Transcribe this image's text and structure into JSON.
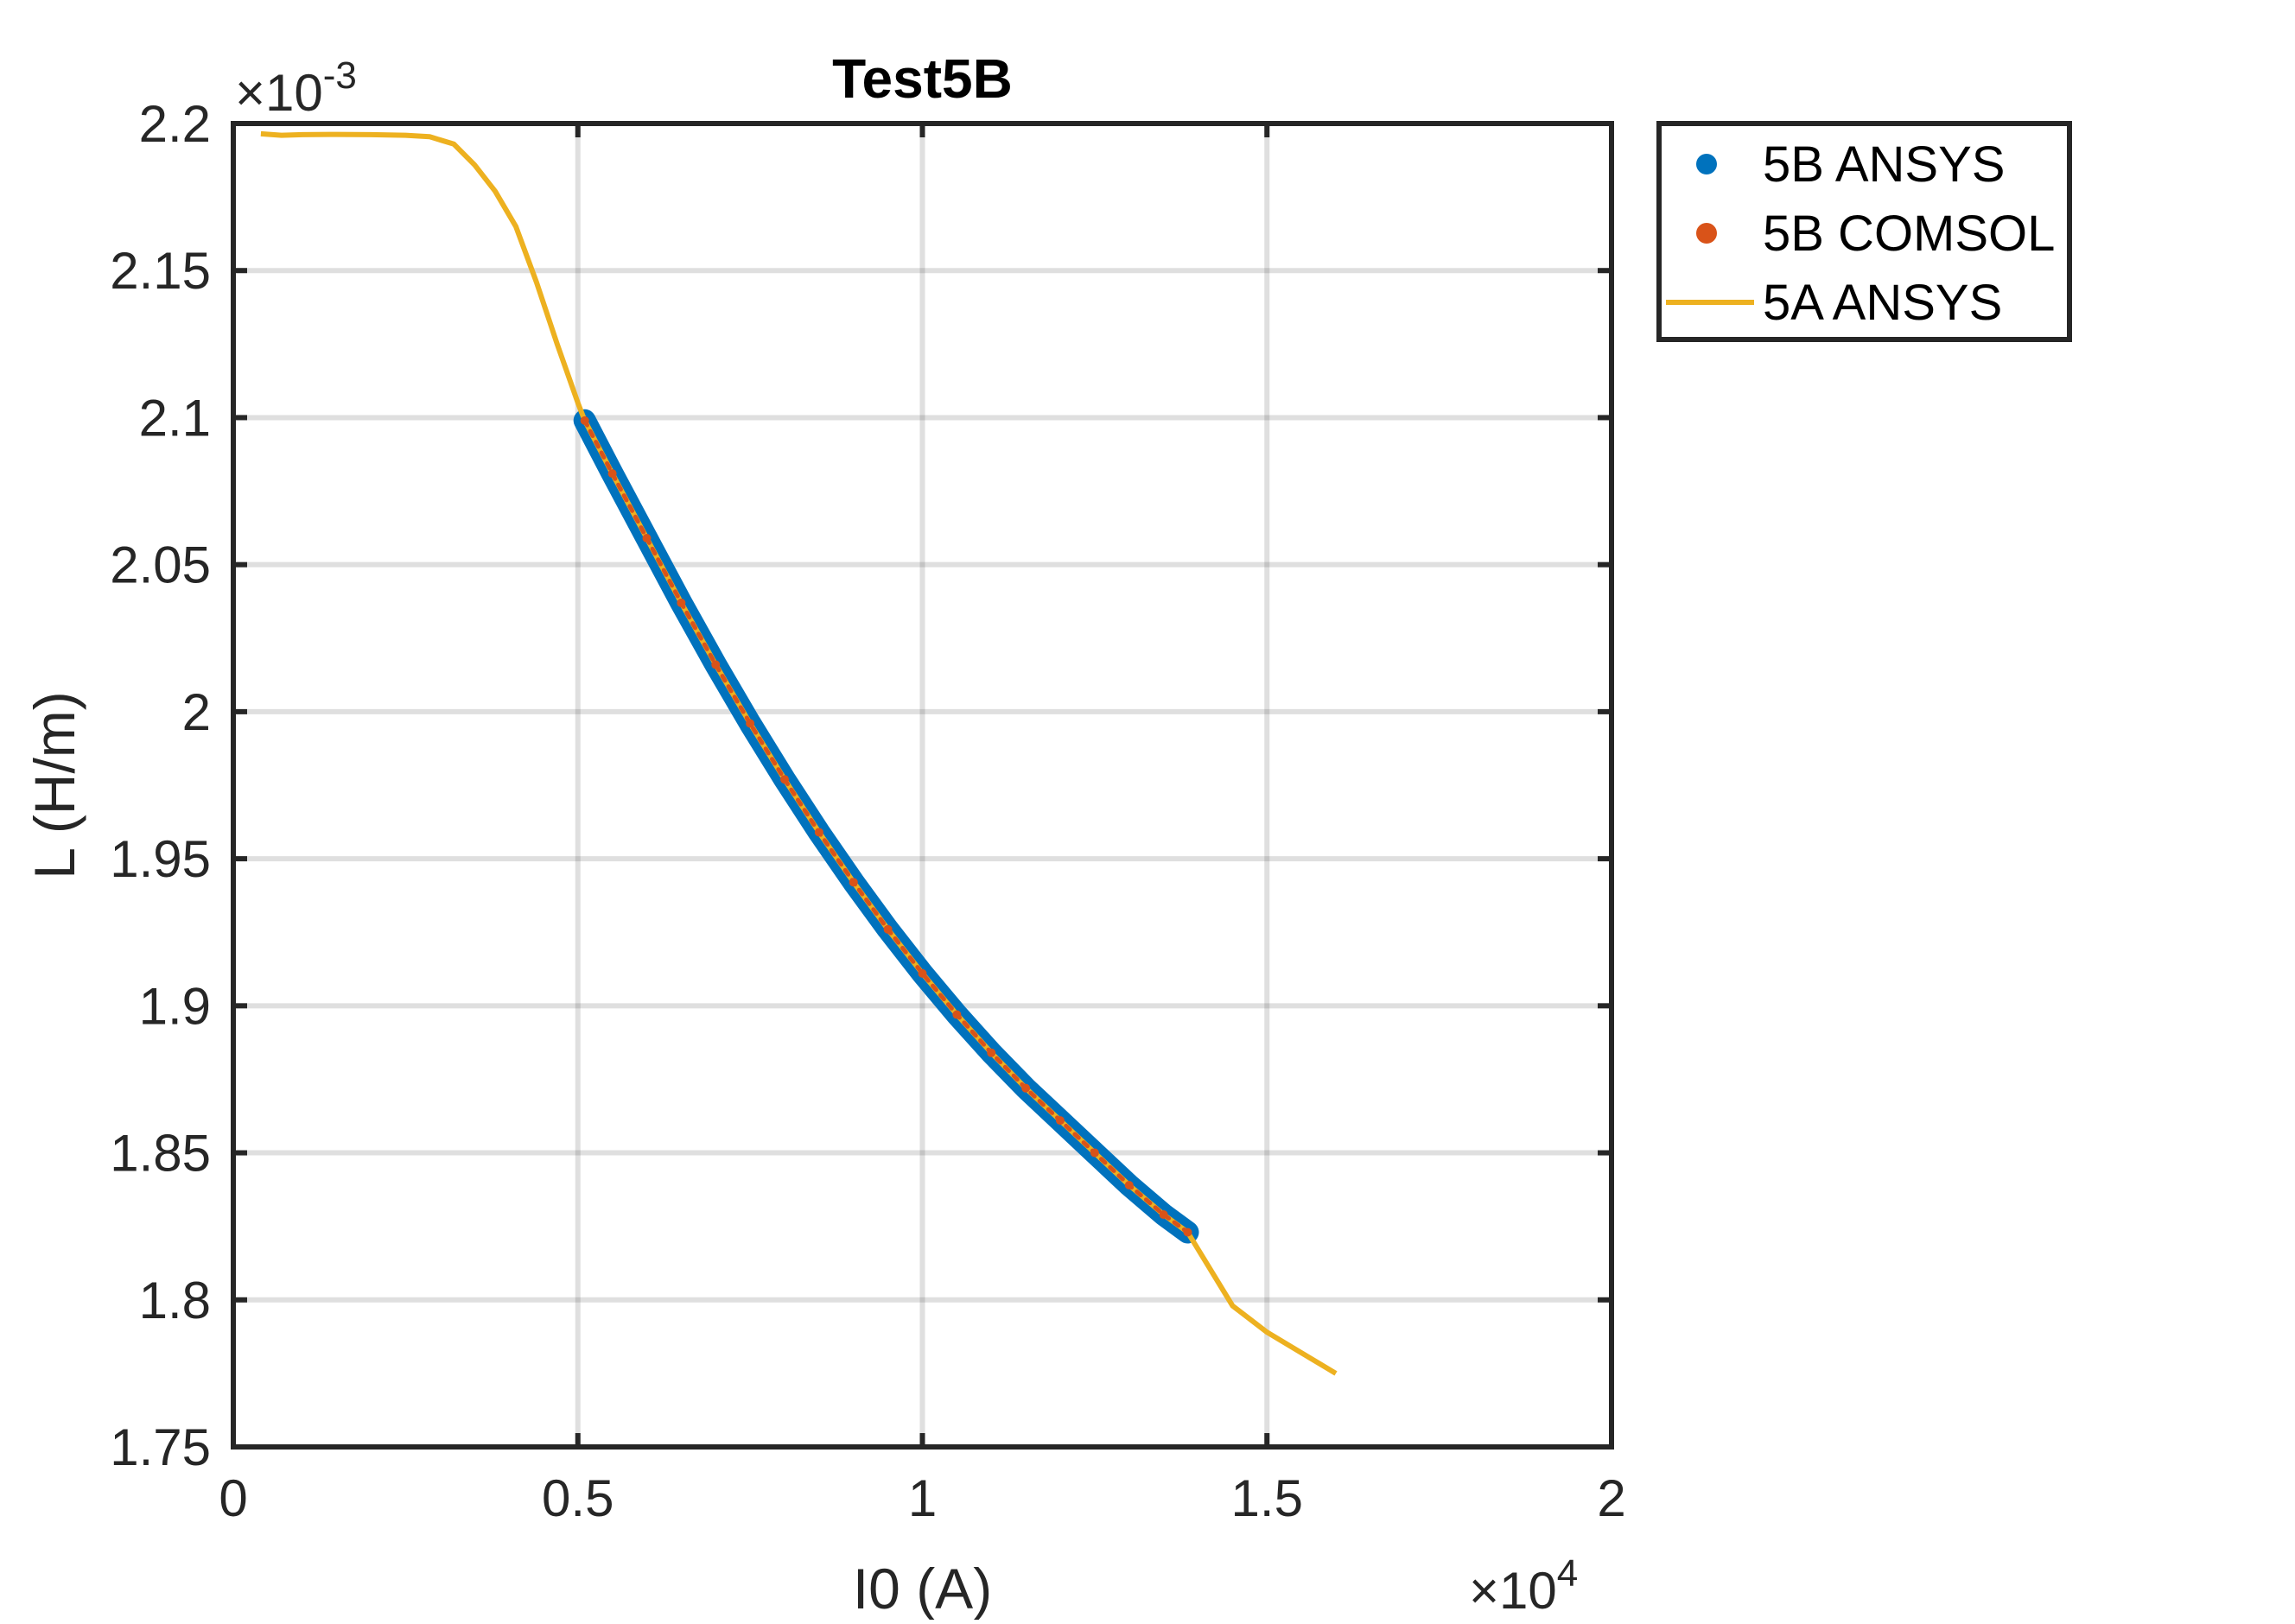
{
  "chart_data": {
    "type": "line",
    "title": "Test5B",
    "xlabel": "I0 (A)",
    "ylabel": "L (H/m)",
    "x_multiplier": {
      "prefix": "×10",
      "exponent": "4"
    },
    "y_multiplier": {
      "prefix": "×10",
      "exponent": "-3"
    },
    "xlim": [
      0,
      20000
    ],
    "ylim": [
      1.75,
      2.2
    ],
    "xticks": [
      0,
      5000,
      10000,
      15000,
      20000
    ],
    "xtick_labels": [
      "0",
      "0.5",
      "1",
      "1.5",
      "2"
    ],
    "yticks": [
      1.75,
      1.8,
      1.85,
      1.9,
      1.95,
      2.0,
      2.05,
      2.1,
      2.15,
      2.2
    ],
    "ytick_labels": [
      "1.75",
      "1.8",
      "1.85",
      "1.9",
      "1.95",
      "2",
      "2.05",
      "2.1",
      "2.15",
      "2.2"
    ],
    "grid": true,
    "legend_position": "outside top-right",
    "series": [
      {
        "name": "5B ANSYS",
        "style": "markers",
        "color": "#0072BD",
        "x": [
          5100,
          5500,
          6000,
          6500,
          7000,
          7500,
          8000,
          8500,
          9000,
          9500,
          10000,
          10500,
          11000,
          11500,
          12000,
          12500,
          13000,
          13500,
          13850
        ],
        "y": [
          2.099,
          2.081,
          2.059,
          2.037,
          2.016,
          1.996,
          1.977,
          1.959,
          1.942,
          1.926,
          1.911,
          1.897,
          1.884,
          1.872,
          1.861,
          1.85,
          1.839,
          1.829,
          1.823
        ]
      },
      {
        "name": "5B COMSOL",
        "style": "markers",
        "color": "#D95319",
        "x": [
          5100,
          5500,
          6000,
          6500,
          7000,
          7500,
          8000,
          8500,
          9000,
          9500,
          10000,
          10500,
          11000,
          11500,
          12000,
          12500,
          13000,
          13500,
          13850
        ],
        "y": [
          2.099,
          2.081,
          2.059,
          2.037,
          2.016,
          1.996,
          1.977,
          1.959,
          1.942,
          1.926,
          1.911,
          1.897,
          1.884,
          1.872,
          1.861,
          1.85,
          1.839,
          1.829,
          1.823
        ]
      },
      {
        "name": "5A ANSYS",
        "style": "line",
        "color": "#EDB120",
        "x": [
          400,
          700,
          1000,
          1500,
          2000,
          2500,
          2850,
          3200,
          3500,
          3800,
          4100,
          4400,
          4700,
          5000,
          5100,
          5500,
          6000,
          6500,
          7000,
          7500,
          8000,
          8500,
          9000,
          9500,
          10000,
          10500,
          11000,
          11500,
          12000,
          12500,
          13000,
          13500,
          13850,
          14500,
          15000,
          15500,
          16000
        ],
        "y": [
          2.1965,
          2.196,
          2.1962,
          2.1963,
          2.1962,
          2.196,
          2.1955,
          2.193,
          2.186,
          2.177,
          2.165,
          2.146,
          2.125,
          2.105,
          2.099,
          2.081,
          2.059,
          2.037,
          2.016,
          1.996,
          1.977,
          1.959,
          1.942,
          1.926,
          1.911,
          1.897,
          1.884,
          1.872,
          1.861,
          1.85,
          1.839,
          1.829,
          1.823,
          1.798,
          1.789,
          1.782,
          1.775
        ]
      }
    ]
  }
}
